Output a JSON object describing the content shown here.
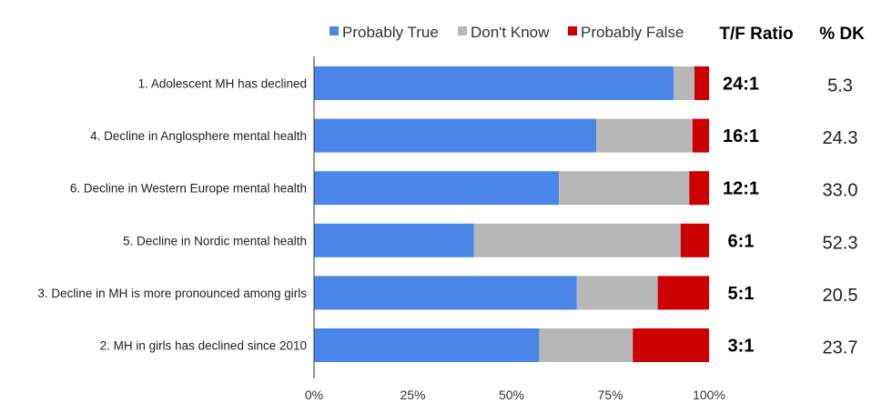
{
  "chart_data": {
    "type": "bar",
    "orientation": "horizontal",
    "stacked": true,
    "categories": [
      "1. Adolescent MH has declined",
      "4. Decline in Anglosphere mental health",
      "6. Decline in Western Europe mental health",
      "5. Decline in Nordic mental health",
      "3. Decline in MH is more pronounced among girls",
      "2. MH in girls has declined since 2010"
    ],
    "series": [
      {
        "name": "Probably True",
        "color": "#4a86e8",
        "values": [
          91.0,
          71.5,
          62.0,
          40.5,
          66.5,
          57.0
        ]
      },
      {
        "name": "Don't Know",
        "color": "#b7b7b7",
        "values": [
          5.3,
          24.3,
          33.0,
          52.3,
          20.5,
          23.7
        ]
      },
      {
        "name": "Probably False",
        "color": "#cc0000",
        "values": [
          3.7,
          4.2,
          5.0,
          7.2,
          13.0,
          19.3
        ]
      }
    ],
    "x_ticks": [
      "0%",
      "25%",
      "50%",
      "75%",
      "100%"
    ],
    "xlim": [
      0,
      100
    ],
    "grid": false,
    "legend_position": "top",
    "extra_columns": {
      "ratio_header": "T/F Ratio",
      "ratio_values": [
        "24:1",
        "16:1",
        "12:1",
        "6:1",
        "5:1",
        "3:1"
      ],
      "dk_header": "% DK",
      "dk_values": [
        "5.3",
        "24.3",
        "33.0",
        "52.3",
        "20.5",
        "23.7"
      ]
    }
  }
}
